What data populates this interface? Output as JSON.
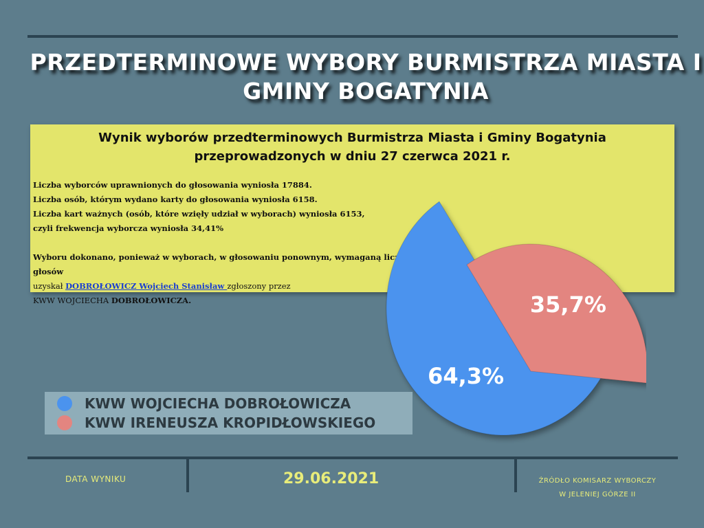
{
  "title": "PRZEDTERMINOWE WYBORY BURMISTRZA MIASTA I GMINY BOGATYNIA",
  "info": {
    "heading": "Wynik wyborów przedterminowych Burmistrza Miasta i Gminy Bogatynia przeprowadzonych w dniu 27 czerwca 2021 r.",
    "line1": "Liczba wyborców uprawnionych do głosowania wyniosła 17884.",
    "line2": "Liczba osób, którym wydano karty do głosowania wyniosła 6158.",
    "line3": "Liczba kart ważnych (osób, które wzięły udział w wyborach) wyniosła 6153,",
    "line4": "czyli frekwencja wyborcza wyniosła 34,41%",
    "line5": "Wyboru dokonano, ponieważ w wyborach, w głosowaniu ponownym, wymaganą liczbę głosów",
    "line6_prefix": "uzyskał ",
    "winner_link": "DOBROŁOWICZ Wojciech Stanisław ",
    "line6_suffix": "zgłoszony przez",
    "line7_prefix": "KWW WOJCIECHA ",
    "line7_bold": "DOBROŁOWICZA."
  },
  "chart_data": {
    "type": "pie",
    "series": [
      {
        "name": "KWW WOJCIECHA DOBROŁOWICZA",
        "value": 64.3,
        "label": "64,3%",
        "color": "#4b93ee"
      },
      {
        "name": "KWW IRENEUSZA KROPIDŁOWSKIEGO",
        "value": 35.7,
        "label": "35,7%",
        "color": "#e38580"
      }
    ],
    "legend_placement": "bottom-left"
  },
  "footer": {
    "date_label": "DATA WYNIKU",
    "date": "29.06.2021",
    "source_line1": "ŹRÓDŁO KOMISARZ WYBORCZY",
    "source_line2": "W JELENIEJ GÓRZE II"
  }
}
